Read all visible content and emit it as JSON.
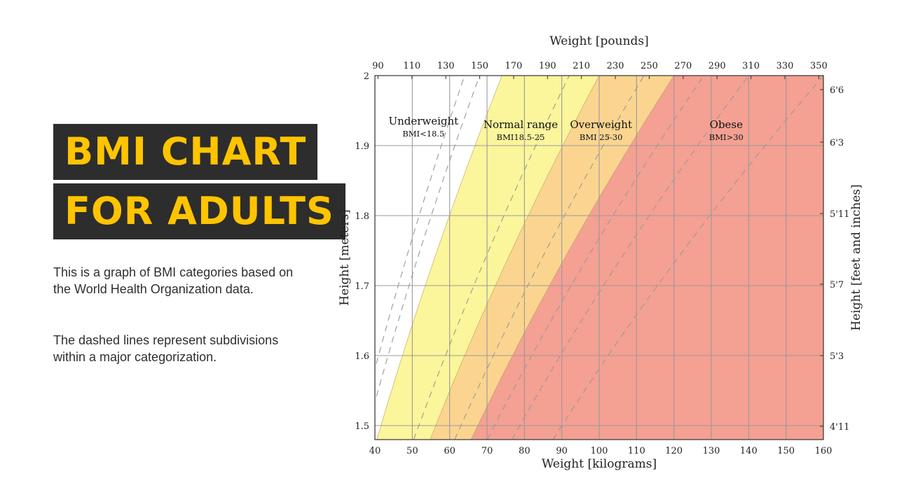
{
  "page": {
    "title_lines": [
      "BMI CHART",
      "FOR ADULTS"
    ],
    "paragraphs": [
      "This is a graph of BMI categories based on the World Health Organization data.",
      "The dashed lines represent subdivisions within a major categorization."
    ]
  },
  "chart_data": {
    "type": "area",
    "title": "",
    "xlabel": "Weight [kilograms]",
    "ylabel": "Height [meters]",
    "top_xlabel": "Weight [pounds]",
    "right_ylabel": "Height [feet and inches]",
    "xlim": [
      40,
      160
    ],
    "ylim": [
      1.48,
      2.0
    ],
    "x_ticks": [
      40,
      50,
      60,
      70,
      80,
      90,
      100,
      110,
      120,
      130,
      140,
      150,
      160
    ],
    "y_ticks": [
      1.5,
      1.6,
      1.7,
      1.8,
      1.9,
      2
    ],
    "top_ticks": [
      {
        "label": "90",
        "kg": 40.82
      },
      {
        "label": "110",
        "kg": 49.9
      },
      {
        "label": "130",
        "kg": 58.97
      },
      {
        "label": "150",
        "kg": 68.04
      },
      {
        "label": "170",
        "kg": 77.11
      },
      {
        "label": "190",
        "kg": 86.18
      },
      {
        "label": "210",
        "kg": 95.25
      },
      {
        "label": "230",
        "kg": 104.33
      },
      {
        "label": "250",
        "kg": 113.4
      },
      {
        "label": "270",
        "kg": 122.47
      },
      {
        "label": "290",
        "kg": 131.54
      },
      {
        "label": "310",
        "kg": 140.61
      },
      {
        "label": "330",
        "kg": 149.69
      },
      {
        "label": "350",
        "kg": 158.76
      }
    ],
    "right_ticks": [
      {
        "label": "6'6",
        "m": 1.98
      },
      {
        "label": "6'3",
        "m": 1.905
      },
      {
        "label": "5'11",
        "m": 1.803
      },
      {
        "label": "5'7",
        "m": 1.702
      },
      {
        "label": "5'3",
        "m": 1.6
      },
      {
        "label": "4'11",
        "m": 1.499
      }
    ],
    "bmi_boundaries": [
      18.5,
      25,
      30
    ],
    "dashed_bmi_lines": [
      16,
      17,
      23,
      28,
      32,
      35,
      40
    ],
    "series": [
      {
        "name": "Underweight",
        "sublabel": "BMI<18.5",
        "color": "#ffffff",
        "label_x": 53,
        "label_y": 1.93
      },
      {
        "name": "Normal range",
        "sublabel": "BMI18.5-25",
        "color": "#fbf59b",
        "label_x": 79,
        "label_y": 1.925
      },
      {
        "name": "Overweight",
        "sublabel": "BMI 25-30",
        "color": "#fbd590",
        "label_x": 100.5,
        "label_y": 1.925
      },
      {
        "name": "Obese",
        "sublabel": "BMI>30",
        "color": "#f4a093",
        "label_x": 134,
        "label_y": 1.925
      }
    ],
    "colors": {
      "grid": "#9a9a9a",
      "dash": "#999999",
      "axis": "#333333"
    }
  }
}
